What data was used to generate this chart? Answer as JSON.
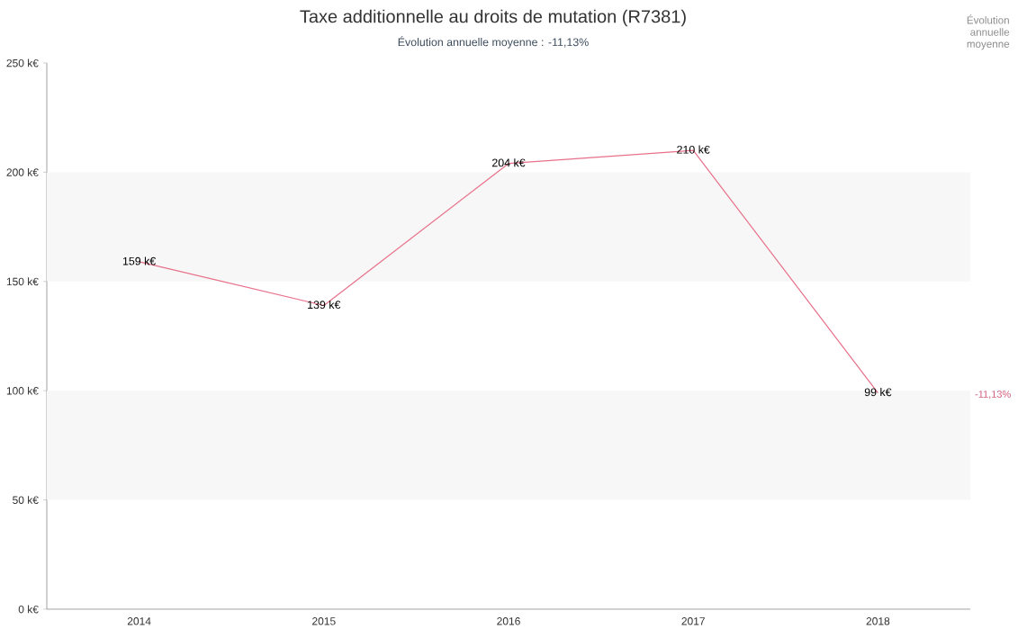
{
  "chart_data": {
    "type": "line",
    "title": "Taxe additionnelle au droits de mutation (R7381)",
    "subtitle": "Évolution annuelle moyenne : -11,13%",
    "categories": [
      "2014",
      "2015",
      "2016",
      "2017",
      "2018"
    ],
    "series": [
      {
        "color": "#e8708a",
        "values": [
          159,
          139,
          204,
          210,
          99
        ],
        "value_labels": [
          "159 k€",
          "139 k€",
          "204 k€",
          "210 k€",
          "99 k€"
        ]
      }
    ],
    "ylim": [
      0,
      250
    ],
    "yticks": [
      {
        "value": 0,
        "label": "0 k€"
      },
      {
        "value": 50,
        "label": "50 k€"
      },
      {
        "value": 100,
        "label": "100 k€"
      },
      {
        "value": 150,
        "label": "150 k€"
      },
      {
        "value": 200,
        "label": "200 k€"
      },
      {
        "value": 250,
        "label": "250 k€"
      }
    ],
    "bands": [
      {
        "axis": "y",
        "from": 50,
        "to": 100,
        "color": "#f7f7f7"
      },
      {
        "axis": "y",
        "from": 150,
        "to": 200,
        "color": "#f7f7f7"
      }
    ],
    "annotations": [
      "Évolution annuelle moyenne",
      "-11,13%"
    ],
    "grid": false,
    "marker": "none",
    "line_style": "solid"
  }
}
